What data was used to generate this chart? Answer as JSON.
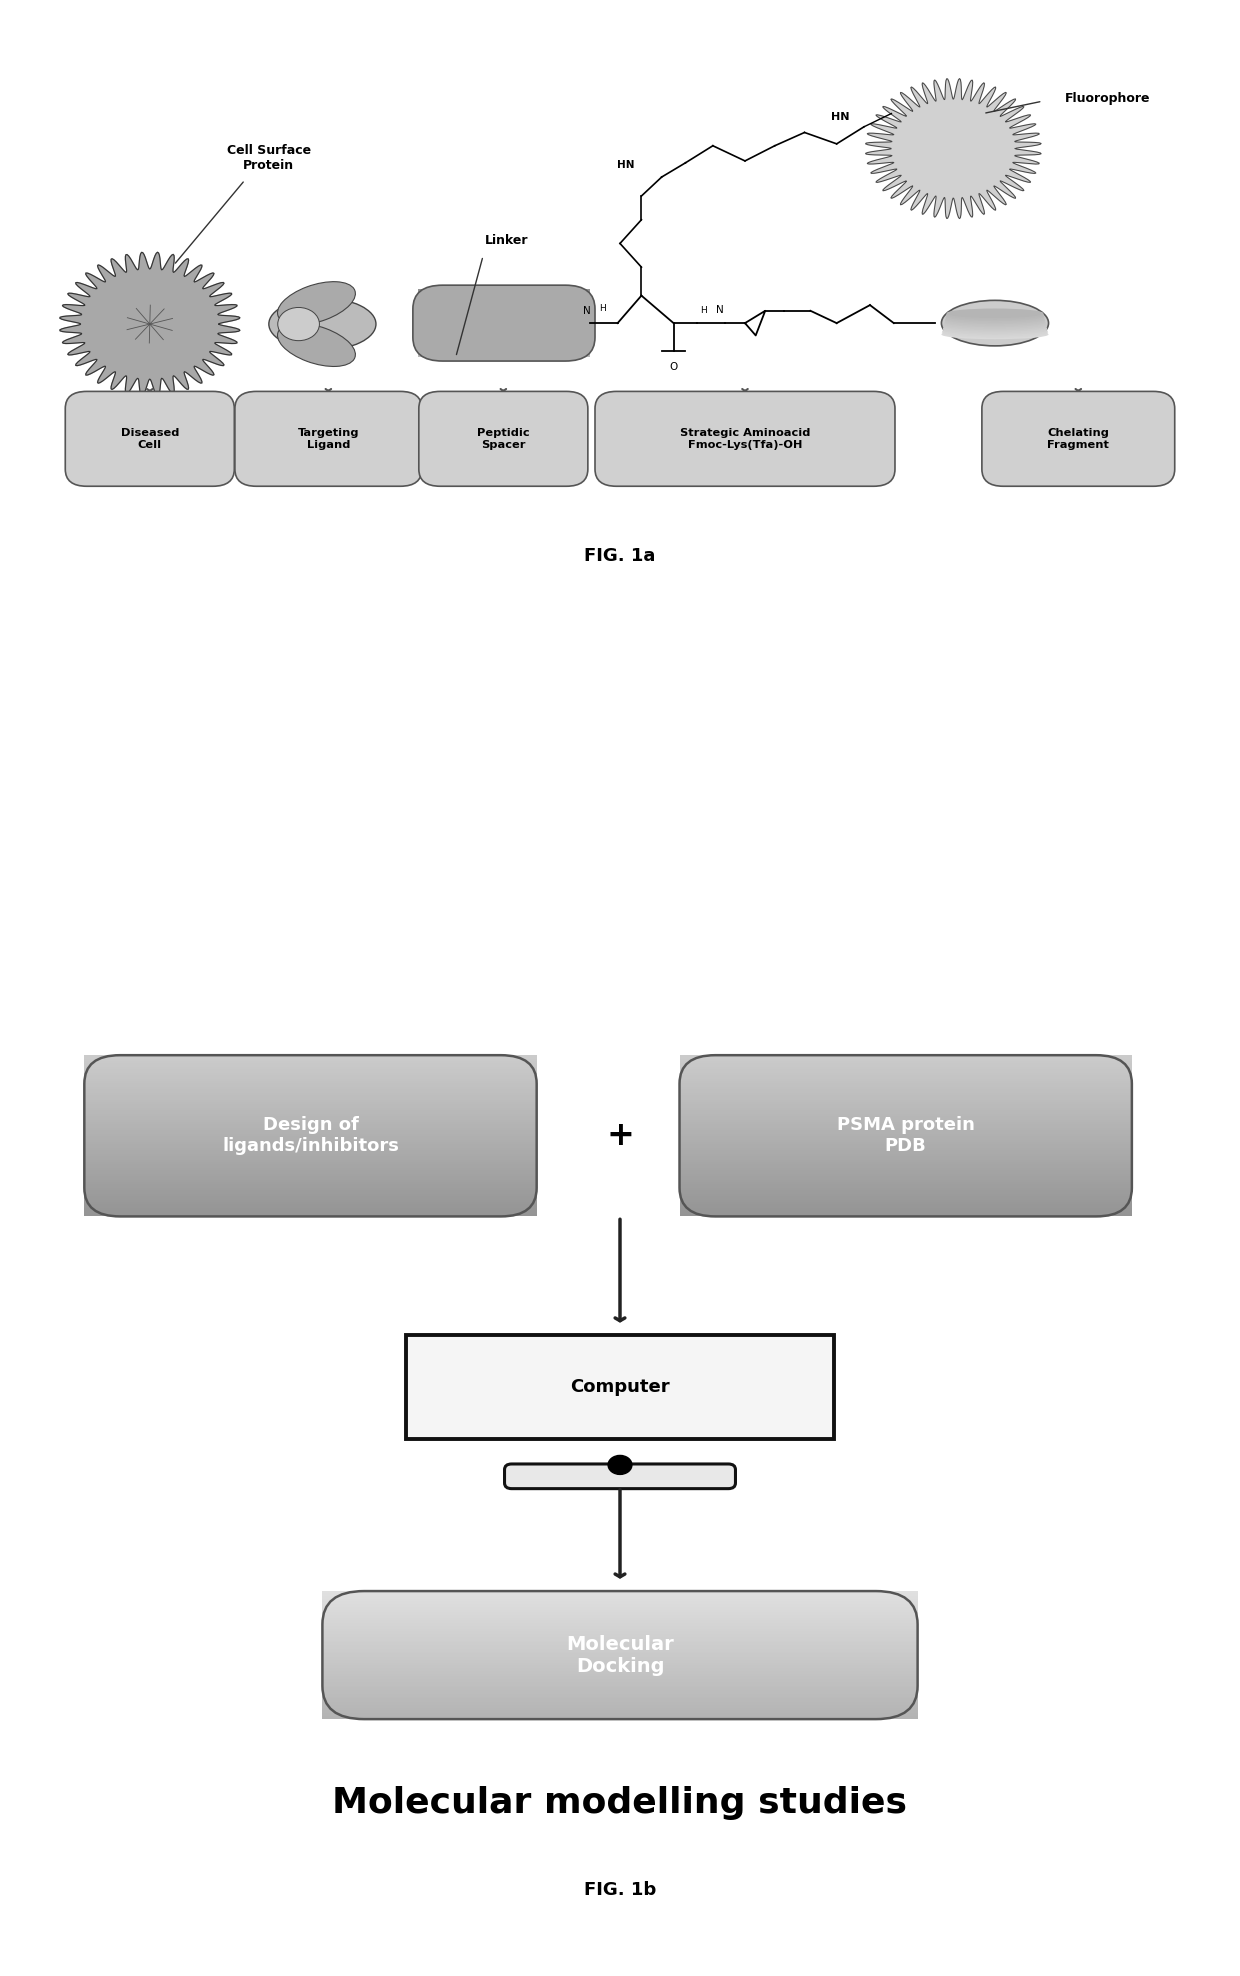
{
  "fig_width": 12.4,
  "fig_height": 19.76,
  "background_color": "#ffffff",
  "fig1a_label": "FIG. 1a",
  "fig1b_label": "FIG. 1b",
  "fig1b_title": "Molecular modelling studies",
  "box1_text": "Design of\nligands/inhibitors",
  "box2_text": "PSMA protein\nPDB",
  "box3_text": "Computer",
  "box4_text": "Molecular\nDocking",
  "plus_sign": "+",
  "label1": "Diseased\nCell",
  "label2": "Targeting\nLigand",
  "label3": "Peptidic\nSpacer",
  "label4": "Strategic Aminoacid\nFmoc-Lys(Tfa)-OH",
  "label5": "Chelating\nFragment",
  "linker_label": "Linker",
  "cell_surface_label": "Cell Surface\nProtein",
  "fluorophore_label": "Fluorophore",
  "hn_label": "HN"
}
